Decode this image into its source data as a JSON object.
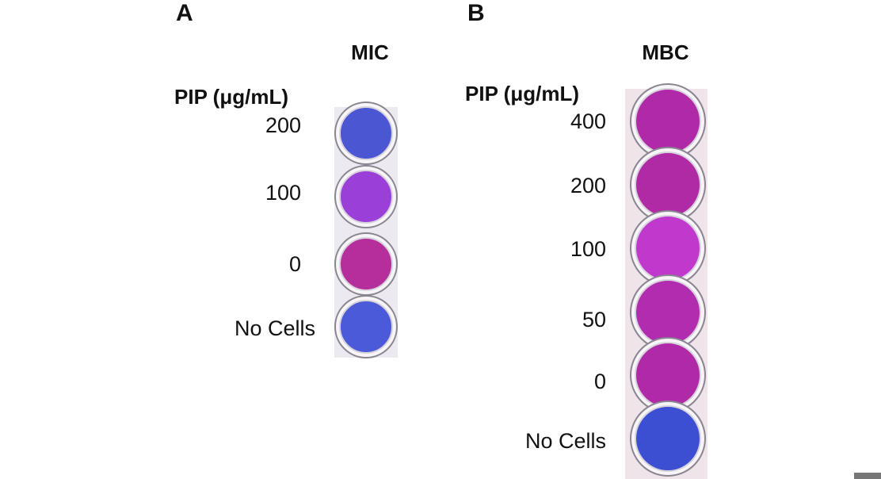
{
  "panels": [
    {
      "letter": "A",
      "title": "MIC",
      "axis_label": "PIP (μg/mL)",
      "wells": [
        {
          "label": "200",
          "color": "#4b56d2"
        },
        {
          "label": "100",
          "color": "#9a3fd8"
        },
        {
          "label": "0",
          "color": "#b42f9c"
        },
        {
          "label": "No Cells",
          "color": "#4a5ad8"
        }
      ]
    },
    {
      "letter": "B",
      "title": "MBC",
      "axis_label": "PIP (μg/mL)",
      "wells": [
        {
          "label": "400",
          "color": "#b02aa8"
        },
        {
          "label": "200",
          "color": "#b02aa6"
        },
        {
          "label": "100",
          "color": "#c038cc"
        },
        {
          "label": "50",
          "color": "#b22cb0"
        },
        {
          "label": "0",
          "color": "#b02aa8"
        },
        {
          "label": "No Cells",
          "color": "#3c4fd2"
        }
      ]
    }
  ]
}
